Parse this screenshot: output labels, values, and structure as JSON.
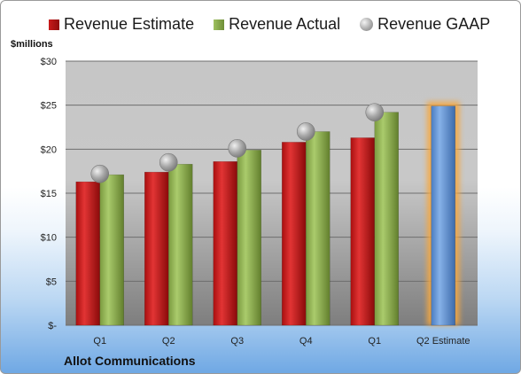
{
  "legend": {
    "estimate": "Revenue Estimate",
    "actual": "Revenue Actual",
    "gaap": "Revenue GAAP"
  },
  "y_unit_label": "$millions",
  "company_label": "Allot Communications",
  "chart_data": {
    "type": "bar",
    "categories": [
      "Q1",
      "Q2",
      "Q3",
      "Q4",
      "Q1",
      "Q2 Estimate"
    ],
    "series": [
      {
        "name": "Revenue Estimate",
        "values": [
          16.3,
          17.4,
          18.6,
          20.8,
          21.3,
          null
        ],
        "color": "#c01818"
      },
      {
        "name": "Revenue Actual",
        "values": [
          17.1,
          18.3,
          19.9,
          22.0,
          24.2,
          null
        ],
        "color": "#87a84a"
      },
      {
        "name": "Revenue GAAP",
        "values": [
          17.2,
          18.5,
          20.1,
          22.0,
          24.2,
          null
        ],
        "marker": "circle",
        "color": "#a8a8a8"
      }
    ],
    "forecast": {
      "category": "Q2 Estimate",
      "value": 24.9,
      "color": "#5b8fd0",
      "highlight": "#f5a740"
    },
    "y_ticks": [
      "$-",
      "$5",
      "$10",
      "$15",
      "$20",
      "$25",
      "$30"
    ],
    "ylim": [
      0,
      30
    ],
    "grid": true,
    "legend_position": "top"
  }
}
